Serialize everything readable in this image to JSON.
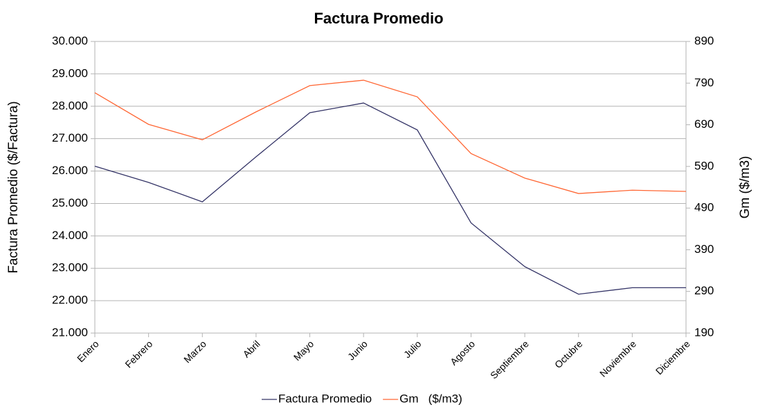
{
  "chart_data": {
    "type": "line",
    "title": "Factura Promedio",
    "y_label": "Factura Promedio ($/Factura)",
    "y2_label": "Gm ($/m3)",
    "categories": [
      "Enero",
      "Febrero",
      "Marzo",
      "Abril",
      "Mayo",
      "Junio",
      "Julio",
      "Agosto",
      "Septiembre",
      "Octubre",
      "Noviembre",
      "Diciembre"
    ],
    "series": [
      {
        "name": "Factura Promedio",
        "color": "#333366",
        "values": [
          26150,
          25650,
          25050,
          26440,
          27800,
          28100,
          27270,
          24400,
          23050,
          22200,
          22400,
          22400
        ]
      },
      {
        "name": "Gm   ($/m3)",
        "color": "#ff6633",
        "axis": "y2",
        "values": [
          767,
          691,
          654,
          721,
          784,
          797,
          757,
          621,
          562,
          525,
          533,
          530
        ]
      }
    ],
    "ylim": [
      21000,
      30000
    ],
    "yticks": [
      {
        "value": 21000,
        "label": "21.000"
      },
      {
        "value": 22000,
        "label": "22.000"
      },
      {
        "value": 23000,
        "label": "23.000"
      },
      {
        "value": 24000,
        "label": "24.000"
      },
      {
        "value": 25000,
        "label": "25.000"
      },
      {
        "value": 26000,
        "label": "26.000"
      },
      {
        "value": 27000,
        "label": "27.000"
      },
      {
        "value": 28000,
        "label": "28.000"
      },
      {
        "value": 29000,
        "label": "29.000"
      },
      {
        "value": 30000,
        "label": "30.000"
      }
    ],
    "y2lim": [
      190,
      890
    ],
    "y2ticks": [
      190,
      290,
      390,
      490,
      590,
      690,
      790,
      890
    ],
    "grid": true,
    "legend": "bottom"
  }
}
